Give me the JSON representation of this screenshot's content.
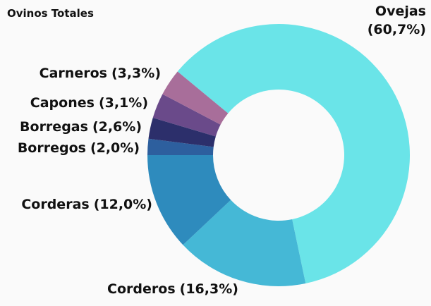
{
  "chart_data": {
    "type": "donut",
    "title": "Ovinos Totales",
    "categories": [
      "Ovejas",
      "Corderos",
      "Corderas",
      "Borregos",
      "Borregas",
      "Capones",
      "Carneros"
    ],
    "values": [
      60.7,
      16.3,
      12.0,
      2.0,
      2.6,
      3.1,
      3.3
    ],
    "value_labels": [
      "(60,7%)",
      "(16,3%)",
      "(12,0%)",
      "(2,0%)",
      "(2,6%)",
      "(3,1%)",
      "(3,3%)"
    ],
    "colors": [
      "#6ae4e8",
      "#45b8d6",
      "#2e8bbd",
      "#2d5f9e",
      "#2c2f6b",
      "#6a4a8a",
      "#a86e9a"
    ]
  }
}
